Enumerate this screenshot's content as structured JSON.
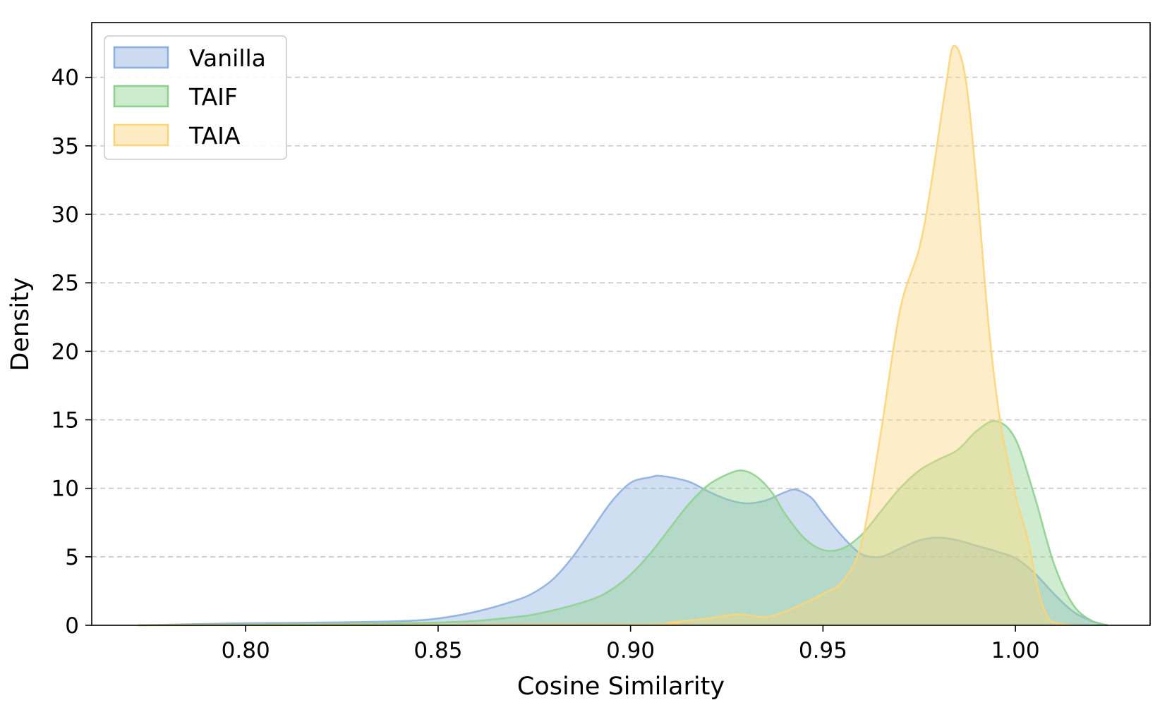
{
  "chart_data": {
    "type": "area",
    "title": "",
    "xlabel": "Cosine Similarity",
    "ylabel": "Density",
    "xlim": [
      0.76,
      1.035
    ],
    "ylim": [
      0,
      44
    ],
    "xticks": [
      0.8,
      0.85,
      0.9,
      0.95,
      1.0
    ],
    "xtick_labels": [
      "0.80",
      "0.85",
      "0.90",
      "0.95",
      "1.00"
    ],
    "yticks": [
      0,
      5,
      10,
      15,
      20,
      25,
      30,
      35,
      40
    ],
    "ytick_labels": [
      "0",
      "5",
      "10",
      "15",
      "20",
      "25",
      "30",
      "35",
      "40"
    ],
    "grid": "horizontal-dashed",
    "legend_position": "top-left",
    "series": [
      {
        "name": "Vanilla",
        "color": "#8eb0de",
        "x": [
          0.772,
          0.79,
          0.8,
          0.82,
          0.84,
          0.85,
          0.86,
          0.87,
          0.875,
          0.88,
          0.885,
          0.89,
          0.895,
          0.9,
          0.905,
          0.908,
          0.915,
          0.92,
          0.925,
          0.93,
          0.935,
          0.94,
          0.943,
          0.947,
          0.95,
          0.955,
          0.96,
          0.965,
          0.97,
          0.975,
          0.98,
          0.985,
          0.99,
          0.995,
          1.0,
          1.005,
          1.01,
          1.015,
          1.02,
          1.024
        ],
        "y": [
          0.0,
          0.1,
          0.15,
          0.2,
          0.3,
          0.5,
          1.0,
          1.8,
          2.4,
          3.4,
          5.0,
          7.0,
          9.0,
          10.4,
          10.8,
          10.9,
          10.5,
          9.8,
          9.2,
          8.9,
          9.1,
          9.7,
          9.9,
          9.3,
          8.2,
          6.5,
          5.2,
          5.0,
          5.6,
          6.2,
          6.4,
          6.2,
          5.8,
          5.4,
          4.9,
          3.8,
          2.3,
          1.0,
          0.3,
          0.0
        ]
      },
      {
        "name": "TAIF",
        "color": "#8fd18f",
        "x": [
          0.772,
          0.8,
          0.85,
          0.87,
          0.88,
          0.89,
          0.895,
          0.9,
          0.905,
          0.91,
          0.915,
          0.92,
          0.925,
          0.929,
          0.933,
          0.937,
          0.94,
          0.945,
          0.95,
          0.955,
          0.96,
          0.965,
          0.97,
          0.975,
          0.98,
          0.985,
          0.99,
          0.995,
          1.0,
          1.005,
          1.01,
          1.015,
          1.02,
          1.024
        ],
        "y": [
          0.0,
          0.05,
          0.2,
          0.6,
          1.1,
          1.9,
          2.6,
          3.7,
          5.2,
          7.0,
          8.8,
          10.2,
          11.0,
          11.3,
          10.8,
          9.6,
          8.2,
          6.4,
          5.5,
          5.6,
          6.6,
          8.3,
          10.0,
          11.3,
          12.1,
          12.8,
          14.2,
          14.9,
          13.6,
          9.4,
          4.5,
          1.5,
          0.3,
          0.0
        ]
      },
      {
        "name": "TAIA",
        "color": "#fbd57b",
        "x": [
          0.772,
          0.9,
          0.91,
          0.92,
          0.928,
          0.935,
          0.94,
          0.945,
          0.95,
          0.955,
          0.96,
          0.965,
          0.97,
          0.975,
          0.978,
          0.982,
          0.984,
          0.987,
          0.99,
          0.993,
          0.996,
          1.0,
          1.003,
          1.006,
          1.008,
          1.01,
          1.015
        ],
        "y": [
          0.0,
          0.05,
          0.2,
          0.5,
          0.8,
          0.6,
          1.0,
          1.6,
          2.3,
          3.2,
          6.0,
          14.0,
          23.0,
          27.5,
          32.0,
          39.5,
          42.3,
          40.0,
          32.0,
          22.0,
          15.0,
          9.5,
          6.5,
          2.5,
          0.8,
          0.2,
          0.0
        ]
      }
    ]
  }
}
